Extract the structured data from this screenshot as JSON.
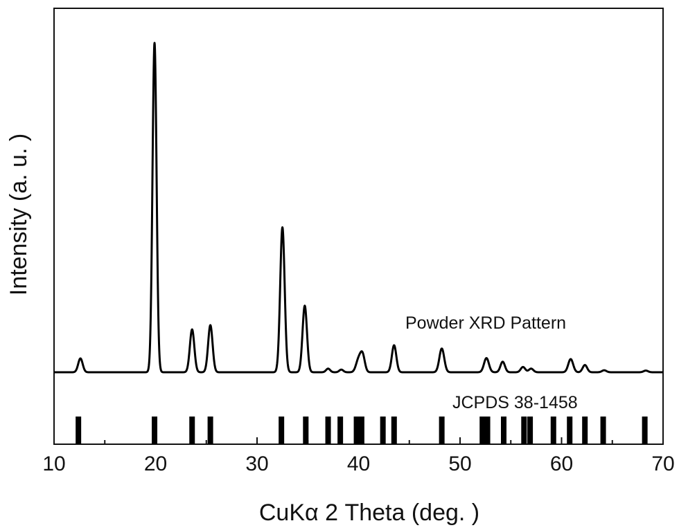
{
  "chart_data": {
    "type": "line",
    "xlabel": "CuKα 2 Theta (deg. )",
    "ylabel": "Intensity (a. u. )",
    "xlim": [
      10,
      70
    ],
    "x_ticks": [
      "10",
      "20",
      "30",
      "40",
      "50",
      "60",
      "70"
    ],
    "y_ticks_labeled": false,
    "annotations": {
      "pattern_label": "Powder XRD Pattern",
      "reference_label": "JCPDS 38-1458"
    },
    "series": [
      {
        "name": "Powder XRD Pattern",
        "baseline": 0,
        "peaks": [
          {
            "x": 12.6,
            "y": 4.2,
            "w": 0.22
          },
          {
            "x": 19.9,
            "y": 100,
            "w": 0.2
          },
          {
            "x": 23.6,
            "y": 13.0,
            "w": 0.22
          },
          {
            "x": 25.4,
            "y": 14.3,
            "w": 0.22
          },
          {
            "x": 32.5,
            "y": 44.0,
            "w": 0.22
          },
          {
            "x": 34.7,
            "y": 20.2,
            "w": 0.22
          },
          {
            "x": 37.0,
            "y": 1.1,
            "w": 0.2
          },
          {
            "x": 38.3,
            "y": 0.8,
            "w": 0.2
          },
          {
            "x": 40.0,
            "y": 3.8,
            "w": 0.25
          },
          {
            "x": 40.4,
            "y": 5.0,
            "w": 0.22
          },
          {
            "x": 43.5,
            "y": 8.2,
            "w": 0.22
          },
          {
            "x": 48.2,
            "y": 7.2,
            "w": 0.24
          },
          {
            "x": 52.6,
            "y": 4.3,
            "w": 0.24
          },
          {
            "x": 54.2,
            "y": 3.2,
            "w": 0.22
          },
          {
            "x": 56.2,
            "y": 1.6,
            "w": 0.22
          },
          {
            "x": 57.0,
            "y": 1.1,
            "w": 0.22
          },
          {
            "x": 60.9,
            "y": 4.0,
            "w": 0.24
          },
          {
            "x": 62.3,
            "y": 2.2,
            "w": 0.22
          },
          {
            "x": 64.2,
            "y": 0.6,
            "w": 0.22
          },
          {
            "x": 68.3,
            "y": 0.5,
            "w": 0.22
          }
        ]
      }
    ],
    "reference_lines": {
      "name": "JCPDS 38-1458",
      "positions": [
        12.4,
        19.9,
        23.6,
        25.4,
        32.4,
        34.8,
        37.0,
        38.2,
        39.8,
        40.3,
        42.4,
        43.5,
        48.2,
        52.2,
        52.7,
        54.3,
        56.3,
        56.9,
        59.2,
        60.8,
        62.3,
        64.1,
        68.2
      ]
    }
  }
}
